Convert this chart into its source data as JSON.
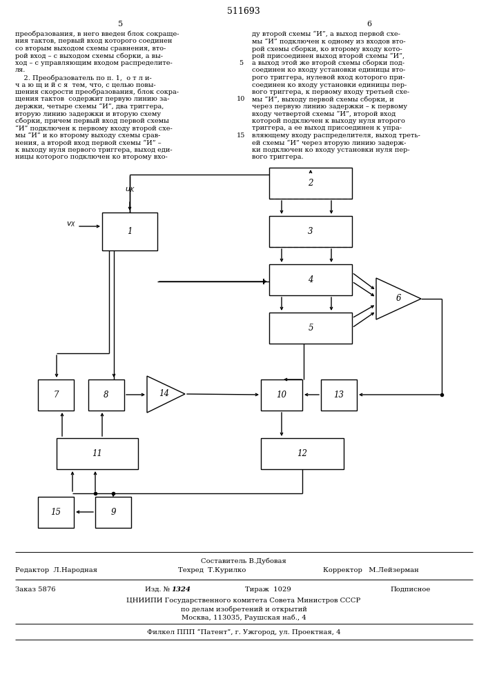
{
  "title": "511693",
  "bg_color": "#ffffff",
  "text_color": "#000000",
  "footer_composer": "Составитель В.Дубовая",
  "footer_editor": "Редактор  Л.Народная",
  "footer_techred": "Техред  Т.Курилко",
  "footer_corrector": "Корректор   М.Лейзерман",
  "footer_order": "Заказ 5876",
  "footer_issue": "Изд. №",
  "footer_issue_num": "1324",
  "footer_circulation": "Тираж  1029",
  "footer_subscription": "Подписное",
  "footer_org1": "ЦНИИПИ Государственного комитета Совета Министров СССР",
  "footer_org2": "по делам изобретений и открытий",
  "footer_org3": "Москва, 113035, Раушская наб., 4",
  "footer_branch": "Филкел ППП “Патент”, г. Ужгород, ул. Проектная, 4",
  "left_text": [
    "преобразования, в него введен блок сокраще-",
    "ния тактов, первый вход которого соединен",
    "со вторым выходом схемы сравнения, вто-",
    "рой вход – с выходом схемы сборки, а вы-",
    "ход – с управляющим входом распределите-",
    "ля.",
    "    2. Преобразователь по п. 1,  о т л и-",
    "ч а ю щ и й с я  тем, что, с целью повы-",
    "шения скорости преобразования, блок сокра-",
    "щения тактов  содержит первую линию за-",
    "держки, четыре схемы “И”, два триггера,",
    "вторую линию задержки и вторую схему",
    "сборки, причем первый вход первой схемы",
    "“И” подключен к первому входу второй схе-",
    "мы “И” и ко второму выходу схемы срав-",
    "нения, а второй вход первой схемы “И” –",
    "к выходу нуля первого триггера, выход еди-",
    "ницы которого подключен ко второму вхо-"
  ],
  "right_text": [
    "ду второй схемы “И”, а выход первой схе-",
    "мы “И” подключен к одному из входов вто-",
    "рой схемы сборки, ко второму входу кото-",
    "рой присоединен выход второй схемы “И”,",
    "а выход этой же второй схемы сборки под-",
    "соединен ко входу установки единицы вто-",
    "рого триггера, нулевой вход которого при-",
    "соединен ко входу установки единицы пер-",
    "вого триггера, к первому входу третьей схе-",
    "мы “И”, выходу первой схемы сборки, и",
    "через первую линию задержки – к первому",
    "входу четвертой схемы “И”, второй вход",
    "которой подключен к выходу нуля второго",
    "триггера, а ее выход присоединен к упра-",
    "вляющему входу распределителя, выход треть-",
    "ей схемы “И” через вторую линию задерж-",
    "ки подключен ко входу установки нуля пер-",
    "вого триггера."
  ]
}
